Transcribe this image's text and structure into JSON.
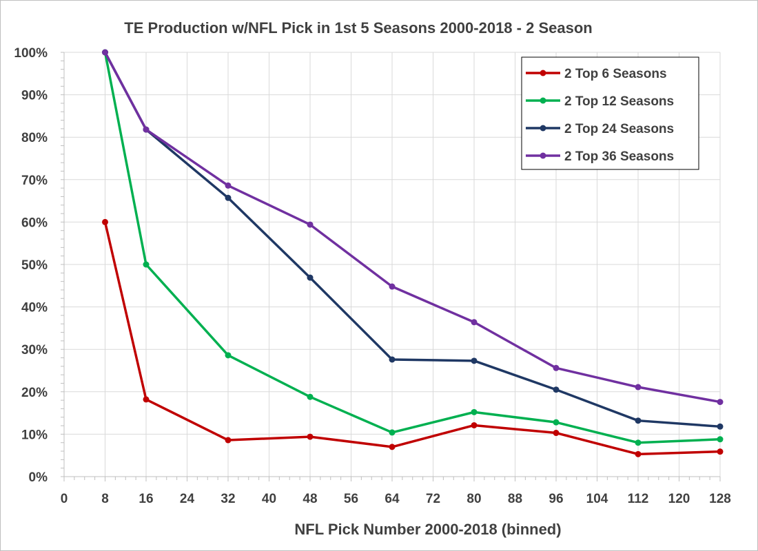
{
  "chart_data": {
    "type": "line",
    "title": "TE Production w/NFL Pick in 1st 5 Seasons 2000-2018 - 2 Season",
    "xlabel": "NFL Pick Number 2000-2018 (binned)",
    "ylabel": "",
    "xlim": [
      0,
      128
    ],
    "ylim": [
      0,
      1
    ],
    "x_ticks": [
      0,
      8,
      16,
      24,
      32,
      40,
      48,
      56,
      64,
      72,
      80,
      88,
      96,
      104,
      112,
      120,
      128
    ],
    "y_ticks": [
      0,
      0.1,
      0.2,
      0.3,
      0.4,
      0.5,
      0.6,
      0.7,
      0.8,
      0.9,
      1.0
    ],
    "y_tick_labels": [
      "0%",
      "10%",
      "20%",
      "30%",
      "40%",
      "50%",
      "60%",
      "70%",
      "80%",
      "90%",
      "100%"
    ],
    "grid": true,
    "legend_position": "top-right",
    "x": [
      8,
      16,
      32,
      48,
      64,
      80,
      96,
      112,
      128
    ],
    "series": [
      {
        "name": "2 Top 6 Seasons",
        "color": "#c00000",
        "values": [
          0.6,
          0.182,
          0.086,
          0.094,
          0.07,
          0.121,
          0.103,
          0.053,
          0.059
        ]
      },
      {
        "name": "2 Top 12 Seasons",
        "color": "#00b050",
        "values": [
          1.0,
          0.5,
          0.286,
          0.188,
          0.104,
          0.152,
          0.128,
          0.08,
          0.088
        ]
      },
      {
        "name": "2 Top 24 Seasons",
        "color": "#1f3864",
        "values": [
          1.0,
          0.818,
          0.657,
          0.469,
          0.276,
          0.273,
          0.205,
          0.132,
          0.118
        ]
      },
      {
        "name": "2 Top 36 Seasons",
        "color": "#7030a0",
        "values": [
          1.0,
          0.818,
          0.686,
          0.594,
          0.448,
          0.364,
          0.256,
          0.211,
          0.176
        ]
      }
    ]
  }
}
